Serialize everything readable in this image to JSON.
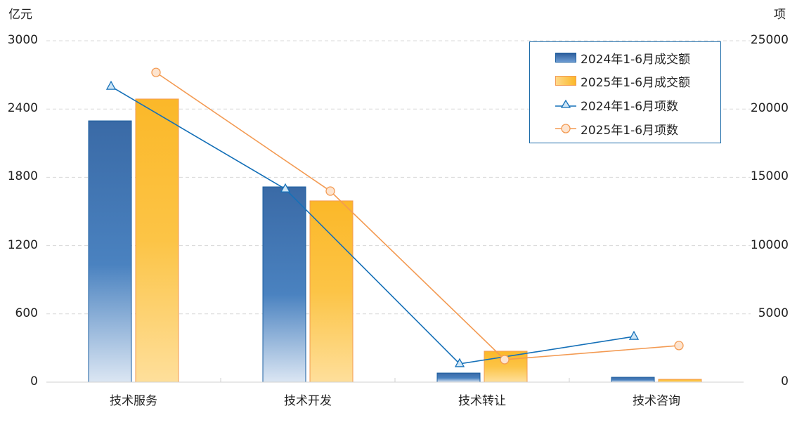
{
  "chart_data": {
    "type": "bar",
    "title": "",
    "categories": [
      "技术服务",
      "技术开发",
      "技术转让",
      "技术咨询"
    ],
    "left_axis": {
      "unit": "亿元",
      "ylim": [
        0,
        3000
      ],
      "ticks": [
        "0",
        "600",
        "1200",
        "1800",
        "2400",
        "3000"
      ]
    },
    "right_axis": {
      "unit": "项",
      "ylim": [
        0,
        25000
      ],
      "ticks": [
        "0",
        "5000",
        "10000",
        "15000",
        "20000",
        "25000"
      ]
    },
    "series": [
      {
        "name": "2024年1-6月成交额",
        "type": "bar",
        "axis": "left",
        "color": "#3a6ea8",
        "values": [
          2296,
          1716,
          80,
          43
        ]
      },
      {
        "name": "2025年1-6月成交额",
        "type": "bar",
        "axis": "left",
        "color": "#fbbb2c",
        "values": [
          2488,
          1593,
          272,
          25
        ]
      },
      {
        "name": "2024年1-6月项数",
        "type": "line",
        "axis": "right",
        "marker": "triangle",
        "color": "#1570b8",
        "values": [
          21650,
          14140,
          1340,
          3340
        ]
      },
      {
        "name": "2025年1-6月项数",
        "type": "line",
        "axis": "right",
        "marker": "circle",
        "color": "#f39a52",
        "values": [
          22680,
          13990,
          1650,
          2680
        ]
      }
    ],
    "grid": true,
    "legend_position": "top-right"
  },
  "axes": {
    "left_unit": "亿元",
    "right_unit": "项",
    "left_ticks": [
      "3000",
      "2400",
      "1800",
      "1200",
      "600",
      "0"
    ],
    "right_ticks": [
      "25000",
      "20000",
      "15000",
      "10000",
      "5000",
      "0"
    ],
    "categories": [
      "技术服务",
      "技术开发",
      "技术转让",
      "技术咨询"
    ]
  },
  "legend": [
    "2024年1-6月成交额",
    "2025年1-6月成交额",
    "2024年1-6月项数",
    "2025年1-6月项数"
  ]
}
